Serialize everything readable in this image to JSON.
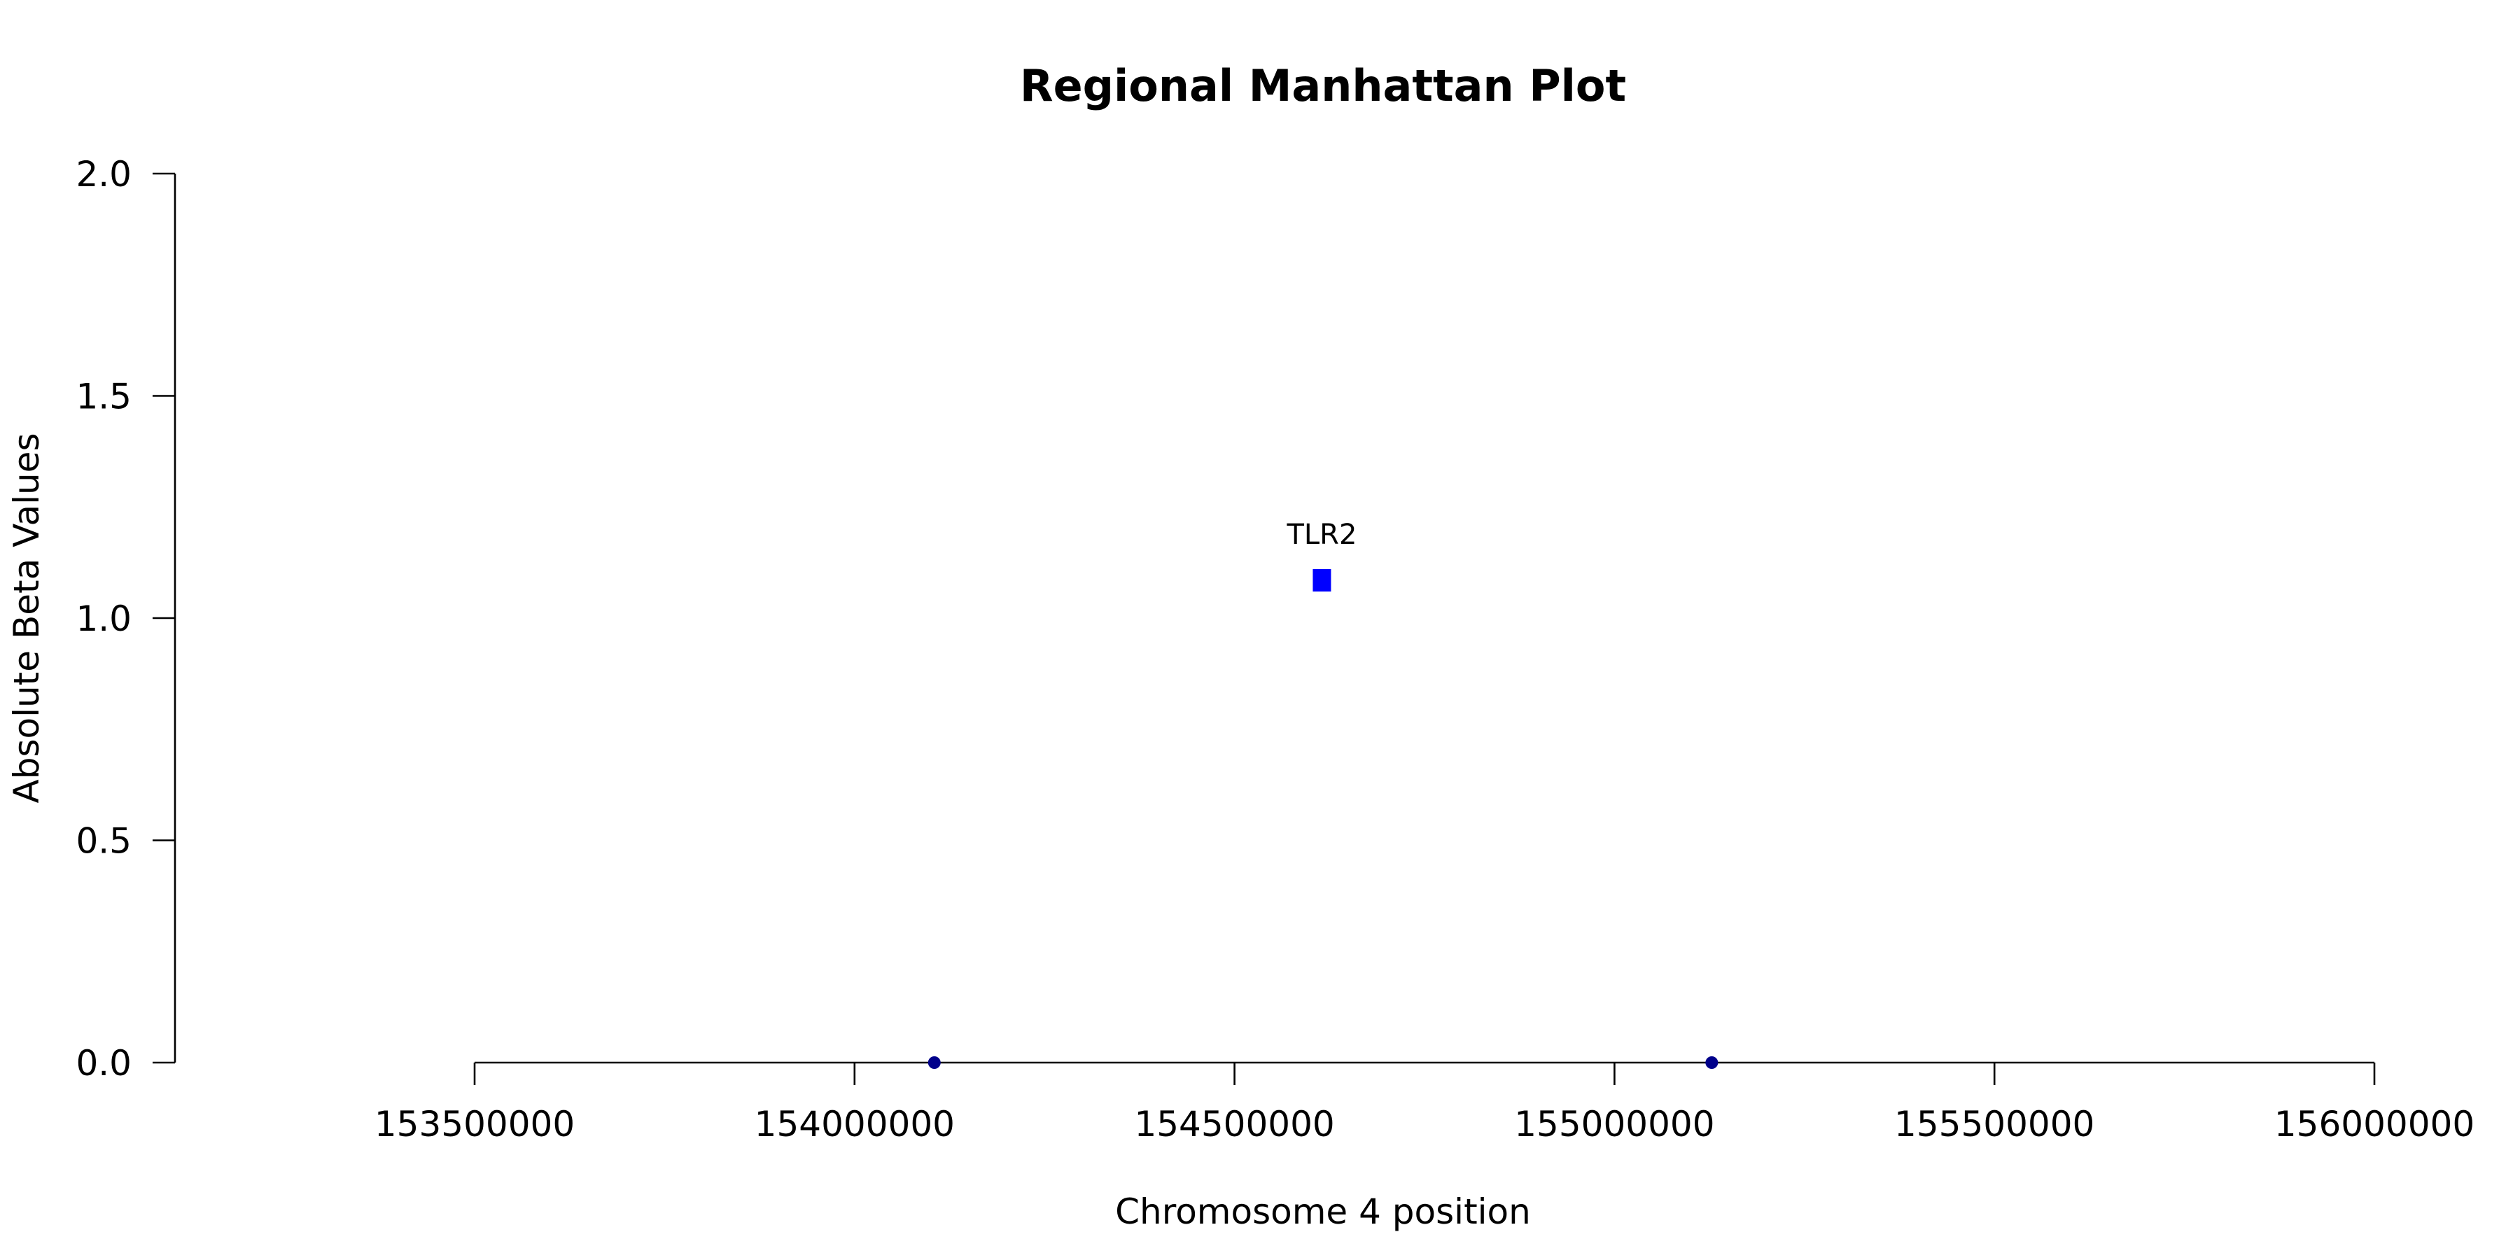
{
  "chart_data": {
    "type": "scatter",
    "title": "Regional Manhattan Plot",
    "xlabel": "Chromosome 4 position",
    "ylabel": "Absolute Beta Values",
    "xlim": [
      153500000,
      156000000
    ],
    "ylim": [
      0,
      2
    ],
    "x_ticks": [
      153500000,
      154000000,
      154500000,
      155000000,
      155500000,
      156000000
    ],
    "x_tick_labels": [
      "153500000",
      "154000000",
      "154500000",
      "155000000",
      "155500000",
      "156000000"
    ],
    "y_ticks": [
      0,
      0.5,
      1,
      1.5,
      2
    ],
    "y_tick_labels": [
      "0.0",
      "0.5",
      "1.0",
      "1.5",
      "2.0"
    ],
    "grid": false,
    "series": [
      {
        "marker": "square",
        "color": "#0000ff",
        "points": [
          {
            "x": 154615000,
            "y": 1.085,
            "label": "TLR2"
          }
        ]
      },
      {
        "marker": "circle",
        "color": "#00008b",
        "points": [
          {
            "x": 154105000,
            "y": 0.0
          },
          {
            "x": 155128000,
            "y": 0.0
          }
        ]
      }
    ]
  }
}
